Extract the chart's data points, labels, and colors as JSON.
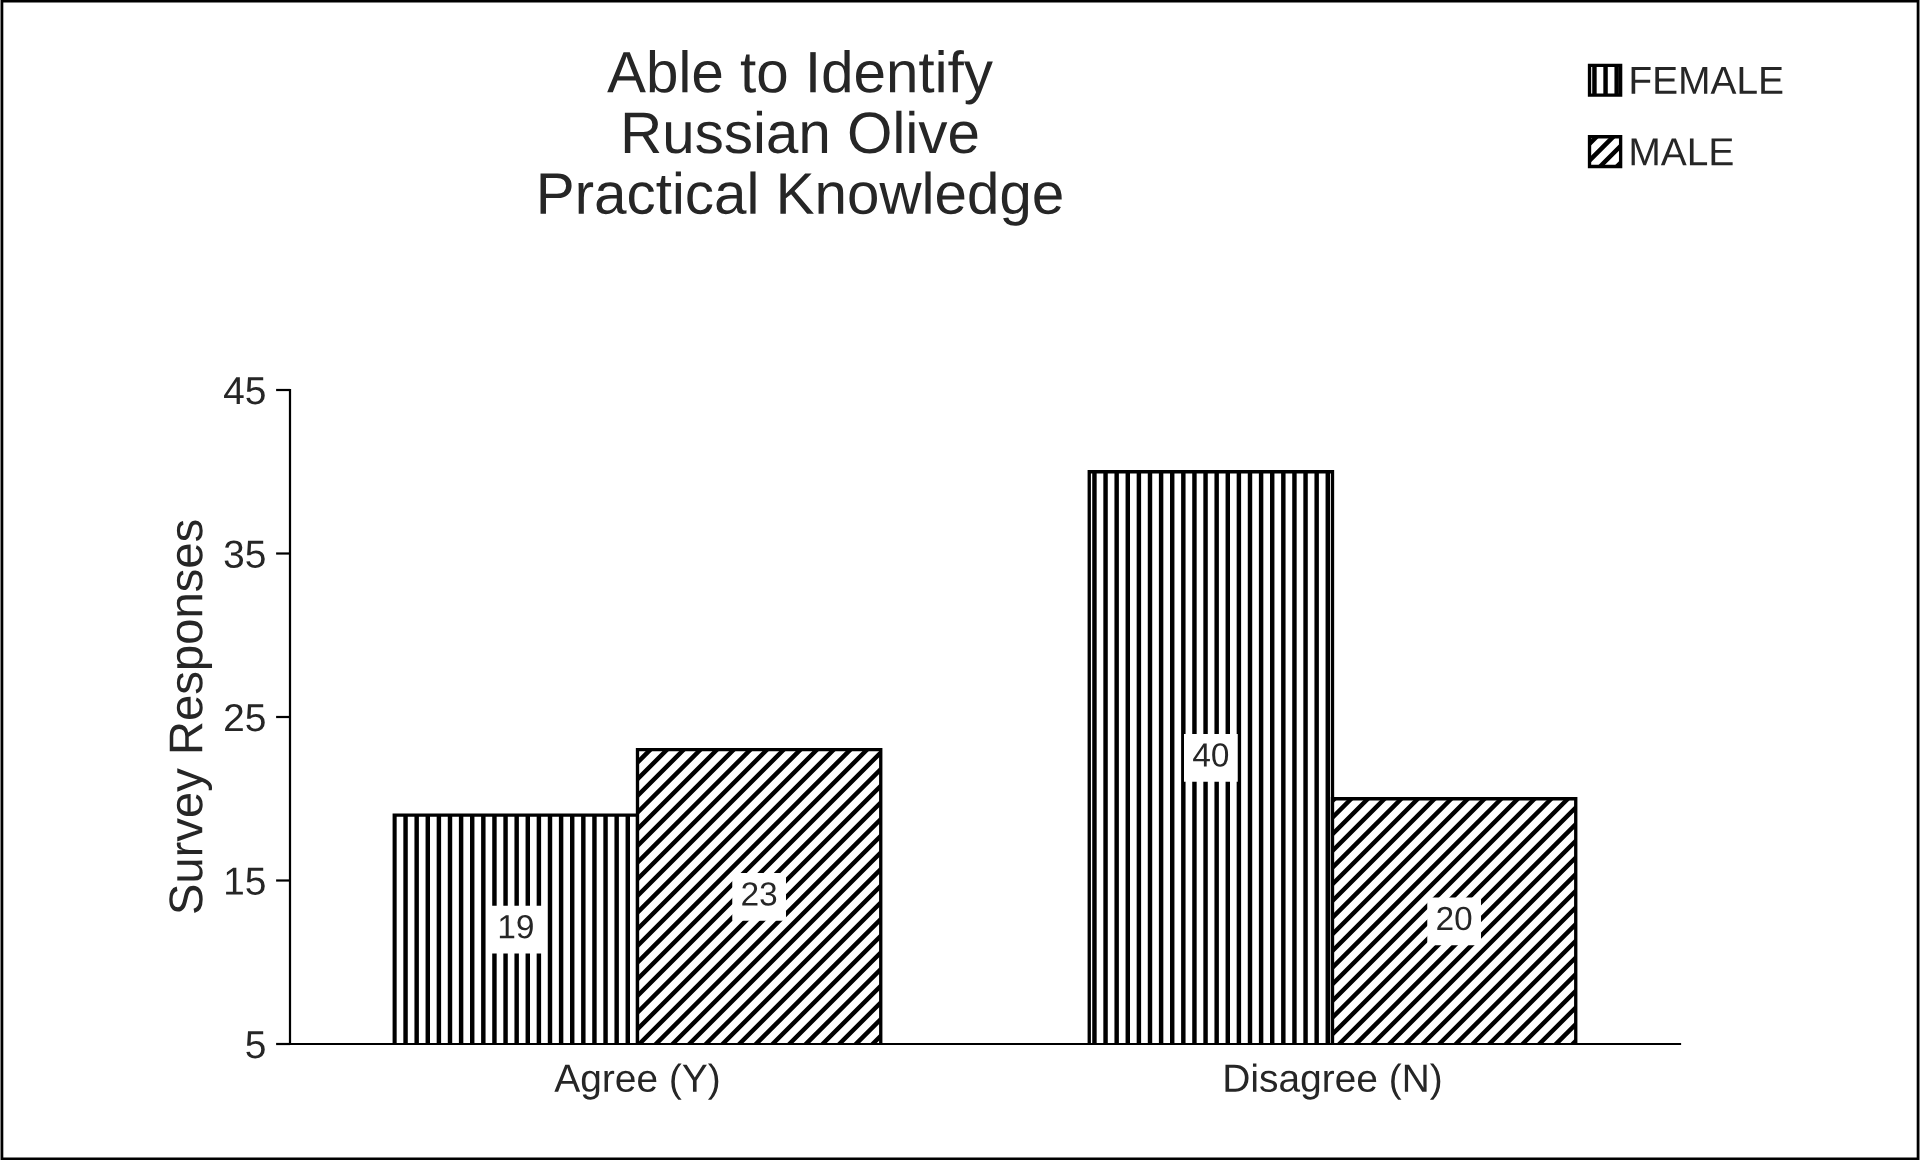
{
  "chart_data": {
    "type": "bar",
    "title": "Able to Identify\nRussian Olive\nPractical Knowledge",
    "ylabel": "Survey Responses",
    "categories": [
      "Agree (Y)",
      "Disagree (N)"
    ],
    "series": [
      {
        "name": "FEMALE",
        "color": "#000000",
        "values": [
          19,
          40
        ]
      },
      {
        "name": "MALE",
        "color": "#000000",
        "values": [
          23,
          20
        ]
      }
    ],
    "ylim": [
      5,
      45
    ],
    "yticks": [
      5,
      15,
      25,
      35,
      45
    ],
    "grid": false,
    "legend": "top right",
    "data_labels": true
  }
}
